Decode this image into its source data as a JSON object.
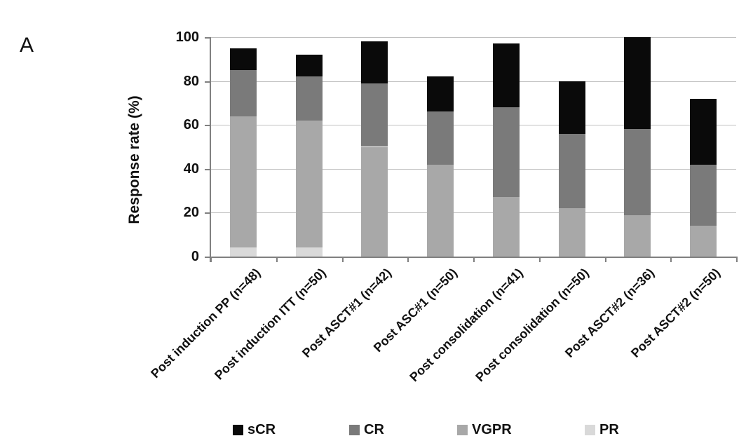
{
  "panel_label": "A",
  "chart_data": {
    "type": "bar",
    "subtype": "stacked-vertical",
    "title": "",
    "xlabel": "",
    "ylabel": "Response rate (%)",
    "ylim": [
      0,
      100
    ],
    "yticks": [
      0,
      20,
      40,
      60,
      80,
      100
    ],
    "grid": true,
    "gridline_color": "#c0c0c0",
    "axis_color": "#808080",
    "categories": [
      "Post induction PP (n=48)",
      "Post induction ITT (n=50)",
      "Post ASCT#1 (n=42)",
      "Post ASC#1 (n=50)",
      "Post consolidation (n=41)",
      "Post consolidation (n=50)",
      "Post ASCT#2 (n=36)",
      "Post ASCT#2 (n=50)"
    ],
    "series": [
      {
        "name": "PR",
        "color": "#d9d9d9",
        "values": [
          4,
          4,
          0,
          0,
          0,
          0,
          0,
          0
        ]
      },
      {
        "name": "VGPR",
        "color": "#a8a8a8",
        "values": [
          60,
          58,
          50,
          42,
          27,
          22,
          19,
          14
        ]
      },
      {
        "name": "CR",
        "color": "#7a7a7a",
        "values": [
          21,
          20,
          29,
          24,
          41,
          34,
          39,
          28
        ]
      },
      {
        "name": "sCR",
        "color": "#0a0a0a",
        "values": [
          10,
          10,
          19,
          16,
          29,
          24,
          42,
          30
        ]
      }
    ],
    "stack_totals": [
      95,
      92,
      98,
      82,
      97,
      80,
      100,
      72
    ],
    "legend": {
      "position": "bottom",
      "entries": [
        "sCR",
        "CR",
        "VGPR",
        "PR"
      ]
    }
  }
}
